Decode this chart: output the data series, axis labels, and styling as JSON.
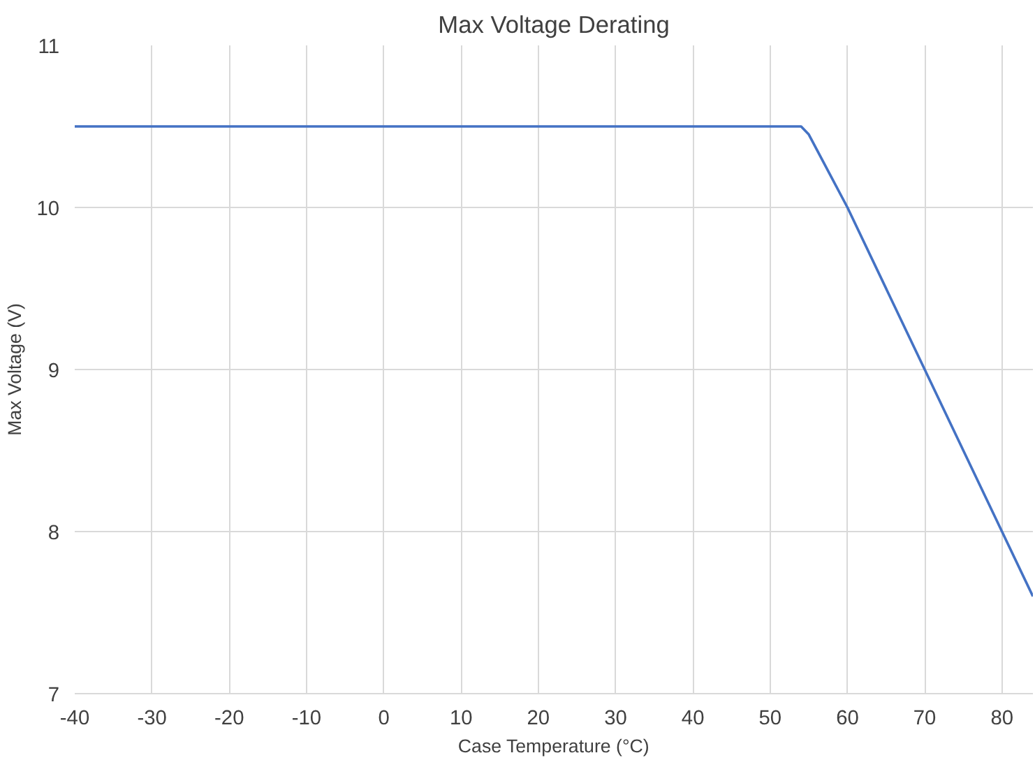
{
  "chart_data": {
    "type": "line",
    "title": "Max Voltage Derating",
    "xlabel": "Case Temperature (°C)",
    "ylabel": "Max Voltage (V)",
    "x": [
      -40,
      54,
      55,
      60,
      70,
      80,
      84
    ],
    "series": [
      {
        "color": "#4472c4",
        "values": [
          10.5,
          10.5,
          10.45,
          10,
          9,
          8,
          7.6
        ]
      }
    ],
    "xlim": [
      -40,
      84
    ],
    "xticks": [
      -40,
      -30,
      -20,
      -10,
      0,
      10,
      20,
      30,
      40,
      50,
      60,
      70,
      80
    ],
    "ylim": [
      7,
      11
    ],
    "yticks": [
      7,
      8,
      9,
      10,
      11
    ],
    "grid": true,
    "marker": "none",
    "line_style": "solid"
  }
}
